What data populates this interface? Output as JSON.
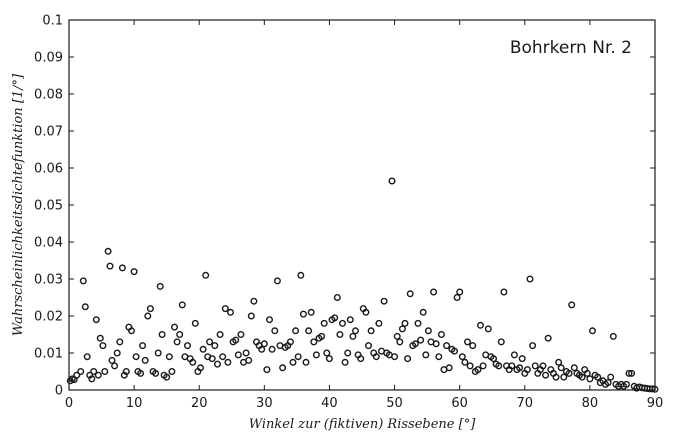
{
  "chart_data": {
    "type": "scatter",
    "title": "",
    "annotation": "Bohrkern Nr. 2",
    "xlabel": "Winkel zur (fiktiven) Rissebene [°]",
    "ylabel": "Wahrscheinlichkeitsdichtefunktion [1/°]",
    "xlim": [
      0,
      90
    ],
    "ylim": [
      0,
      0.1
    ],
    "x_ticks": [
      "0",
      "10",
      "20",
      "30",
      "40",
      "50",
      "60",
      "70",
      "80",
      "90"
    ],
    "y_ticks": [
      "0",
      "0.01",
      "0.02",
      "0.03",
      "0.04",
      "0.05",
      "0.06",
      "0.07",
      "0.08",
      "0.09",
      "0.1"
    ],
    "grid": false,
    "marker": "open-circle",
    "marker_color": "#1a1a1a",
    "points": [
      [
        0.2,
        0.0025
      ],
      [
        0.5,
        0.003
      ],
      [
        0.8,
        0.0028
      ],
      [
        1.2,
        0.004
      ],
      [
        1.8,
        0.005
      ],
      [
        2.2,
        0.0295
      ],
      [
        2.5,
        0.0225
      ],
      [
        2.8,
        0.009
      ],
      [
        3.2,
        0.004
      ],
      [
        3.5,
        0.003
      ],
      [
        3.8,
        0.005
      ],
      [
        4.2,
        0.019
      ],
      [
        4.5,
        0.004
      ],
      [
        4.8,
        0.014
      ],
      [
        5.2,
        0.012
      ],
      [
        5.5,
        0.005
      ],
      [
        6.0,
        0.0375
      ],
      [
        6.3,
        0.0335
      ],
      [
        6.6,
        0.008
      ],
      [
        7.0,
        0.0065
      ],
      [
        7.4,
        0.01
      ],
      [
        7.8,
        0.013
      ],
      [
        8.2,
        0.033
      ],
      [
        8.5,
        0.004
      ],
      [
        8.8,
        0.005
      ],
      [
        9.2,
        0.017
      ],
      [
        9.6,
        0.016
      ],
      [
        10.0,
        0.032
      ],
      [
        10.3,
        0.009
      ],
      [
        10.6,
        0.005
      ],
      [
        11.0,
        0.0045
      ],
      [
        11.3,
        0.012
      ],
      [
        11.7,
        0.008
      ],
      [
        12.1,
        0.02
      ],
      [
        12.5,
        0.022
      ],
      [
        12.9,
        0.005
      ],
      [
        13.3,
        0.0045
      ],
      [
        13.7,
        0.01
      ],
      [
        14.0,
        0.028
      ],
      [
        14.3,
        0.015
      ],
      [
        14.6,
        0.004
      ],
      [
        15.0,
        0.0035
      ],
      [
        15.4,
        0.009
      ],
      [
        15.8,
        0.005
      ],
      [
        16.2,
        0.017
      ],
      [
        16.6,
        0.013
      ],
      [
        17.0,
        0.015
      ],
      [
        17.4,
        0.023
      ],
      [
        17.8,
        0.009
      ],
      [
        18.2,
        0.012
      ],
      [
        18.6,
        0.0085
      ],
      [
        19.0,
        0.0075
      ],
      [
        19.4,
        0.018
      ],
      [
        19.8,
        0.005
      ],
      [
        20.2,
        0.006
      ],
      [
        20.6,
        0.011
      ],
      [
        21.0,
        0.031
      ],
      [
        21.3,
        0.009
      ],
      [
        21.6,
        0.013
      ],
      [
        22.0,
        0.0085
      ],
      [
        22.4,
        0.012
      ],
      [
        22.8,
        0.007
      ],
      [
        23.2,
        0.015
      ],
      [
        23.6,
        0.009
      ],
      [
        24.0,
        0.022
      ],
      [
        24.4,
        0.0075
      ],
      [
        24.8,
        0.021
      ],
      [
        25.2,
        0.013
      ],
      [
        25.6,
        0.0135
      ],
      [
        26.0,
        0.0095
      ],
      [
        26.4,
        0.015
      ],
      [
        26.8,
        0.0075
      ],
      [
        27.2,
        0.01
      ],
      [
        27.6,
        0.008
      ],
      [
        28.0,
        0.02
      ],
      [
        28.4,
        0.024
      ],
      [
        28.8,
        0.013
      ],
      [
        29.2,
        0.012
      ],
      [
        29.6,
        0.011
      ],
      [
        30.0,
        0.0125
      ],
      [
        30.4,
        0.0055
      ],
      [
        30.8,
        0.019
      ],
      [
        31.2,
        0.011
      ],
      [
        31.6,
        0.016
      ],
      [
        32.0,
        0.0295
      ],
      [
        32.4,
        0.012
      ],
      [
        32.8,
        0.006
      ],
      [
        33.2,
        0.0115
      ],
      [
        33.6,
        0.012
      ],
      [
        34.0,
        0.013
      ],
      [
        34.4,
        0.0075
      ],
      [
        34.8,
        0.016
      ],
      [
        35.2,
        0.009
      ],
      [
        35.6,
        0.031
      ],
      [
        36.0,
        0.0205
      ],
      [
        36.4,
        0.0075
      ],
      [
        36.8,
        0.016
      ],
      [
        37.2,
        0.021
      ],
      [
        37.6,
        0.013
      ],
      [
        38.0,
        0.0095
      ],
      [
        38.4,
        0.014
      ],
      [
        38.8,
        0.0145
      ],
      [
        39.2,
        0.018
      ],
      [
        39.6,
        0.01
      ],
      [
        40.0,
        0.0085
      ],
      [
        40.4,
        0.019
      ],
      [
        40.8,
        0.0195
      ],
      [
        41.2,
        0.025
      ],
      [
        41.6,
        0.015
      ],
      [
        42.0,
        0.018
      ],
      [
        42.4,
        0.0075
      ],
      [
        42.8,
        0.01
      ],
      [
        43.2,
        0.019
      ],
      [
        43.6,
        0.0145
      ],
      [
        44.0,
        0.016
      ],
      [
        44.4,
        0.0095
      ],
      [
        44.8,
        0.0085
      ],
      [
        45.2,
        0.022
      ],
      [
        45.6,
        0.021
      ],
      [
        46.0,
        0.012
      ],
      [
        46.4,
        0.016
      ],
      [
        46.8,
        0.01
      ],
      [
        47.2,
        0.009
      ],
      [
        47.6,
        0.018
      ],
      [
        48.0,
        0.0105
      ],
      [
        48.4,
        0.024
      ],
      [
        48.8,
        0.01
      ],
      [
        49.2,
        0.0095
      ],
      [
        49.6,
        0.0565
      ],
      [
        50.0,
        0.009
      ],
      [
        50.4,
        0.0145
      ],
      [
        50.8,
        0.013
      ],
      [
        51.2,
        0.0165
      ],
      [
        51.6,
        0.018
      ],
      [
        52.0,
        0.0085
      ],
      [
        52.4,
        0.026
      ],
      [
        52.8,
        0.012
      ],
      [
        53.2,
        0.0125
      ],
      [
        53.6,
        0.018
      ],
      [
        54.0,
        0.0135
      ],
      [
        54.4,
        0.021
      ],
      [
        54.8,
        0.0095
      ],
      [
        55.2,
        0.016
      ],
      [
        55.6,
        0.013
      ],
      [
        56.0,
        0.0265
      ],
      [
        56.4,
        0.0125
      ],
      [
        56.8,
        0.009
      ],
      [
        57.2,
        0.015
      ],
      [
        57.6,
        0.0055
      ],
      [
        58.0,
        0.012
      ],
      [
        58.4,
        0.006
      ],
      [
        58.8,
        0.011
      ],
      [
        59.2,
        0.0105
      ],
      [
        59.6,
        0.025
      ],
      [
        60.0,
        0.0265
      ],
      [
        60.4,
        0.009
      ],
      [
        60.8,
        0.0075
      ],
      [
        61.2,
        0.013
      ],
      [
        61.6,
        0.0065
      ],
      [
        62.0,
        0.012
      ],
      [
        62.4,
        0.005
      ],
      [
        62.8,
        0.0055
      ],
      [
        63.2,
        0.0175
      ],
      [
        63.6,
        0.0065
      ],
      [
        64.0,
        0.0095
      ],
      [
        64.4,
        0.0165
      ],
      [
        64.8,
        0.009
      ],
      [
        65.2,
        0.0085
      ],
      [
        65.6,
        0.007
      ],
      [
        66.0,
        0.0065
      ],
      [
        66.4,
        0.013
      ],
      [
        66.8,
        0.0265
      ],
      [
        67.2,
        0.0065
      ],
      [
        67.6,
        0.0055
      ],
      [
        68.0,
        0.0065
      ],
      [
        68.4,
        0.0095
      ],
      [
        68.8,
        0.0055
      ],
      [
        69.2,
        0.006
      ],
      [
        69.6,
        0.0085
      ],
      [
        70.0,
        0.0045
      ],
      [
        70.4,
        0.0055
      ],
      [
        70.8,
        0.03
      ],
      [
        71.2,
        0.012
      ],
      [
        71.6,
        0.0065
      ],
      [
        72.0,
        0.0045
      ],
      [
        72.4,
        0.0055
      ],
      [
        72.8,
        0.0065
      ],
      [
        73.2,
        0.004
      ],
      [
        73.6,
        0.014
      ],
      [
        74.0,
        0.0055
      ],
      [
        74.4,
        0.0045
      ],
      [
        74.8,
        0.0035
      ],
      [
        75.2,
        0.0075
      ],
      [
        75.6,
        0.006
      ],
      [
        76.0,
        0.0035
      ],
      [
        76.4,
        0.005
      ],
      [
        76.8,
        0.0045
      ],
      [
        77.2,
        0.023
      ],
      [
        77.6,
        0.006
      ],
      [
        78.0,
        0.0045
      ],
      [
        78.4,
        0.004
      ],
      [
        78.8,
        0.0035
      ],
      [
        79.2,
        0.0055
      ],
      [
        79.6,
        0.0045
      ],
      [
        80.0,
        0.003
      ],
      [
        80.4,
        0.016
      ],
      [
        80.8,
        0.004
      ],
      [
        81.2,
        0.0035
      ],
      [
        81.6,
        0.002
      ],
      [
        82.0,
        0.0025
      ],
      [
        82.4,
        0.0015
      ],
      [
        82.8,
        0.002
      ],
      [
        83.2,
        0.0035
      ],
      [
        83.6,
        0.0145
      ],
      [
        84.0,
        0.0015
      ],
      [
        84.4,
        0.001
      ],
      [
        84.8,
        0.0015
      ],
      [
        85.2,
        0.001
      ],
      [
        85.6,
        0.0015
      ],
      [
        86.0,
        0.0045
      ],
      [
        86.4,
        0.0045
      ],
      [
        86.8,
        0.001
      ],
      [
        87.2,
        0.0005
      ],
      [
        87.6,
        0.0008
      ],
      [
        88.0,
        0.0006
      ],
      [
        88.4,
        0.0005
      ],
      [
        88.8,
        0.0004
      ],
      [
        89.2,
        0.0003
      ],
      [
        89.6,
        0.0003
      ],
      [
        90.0,
        0.0002
      ]
    ]
  }
}
